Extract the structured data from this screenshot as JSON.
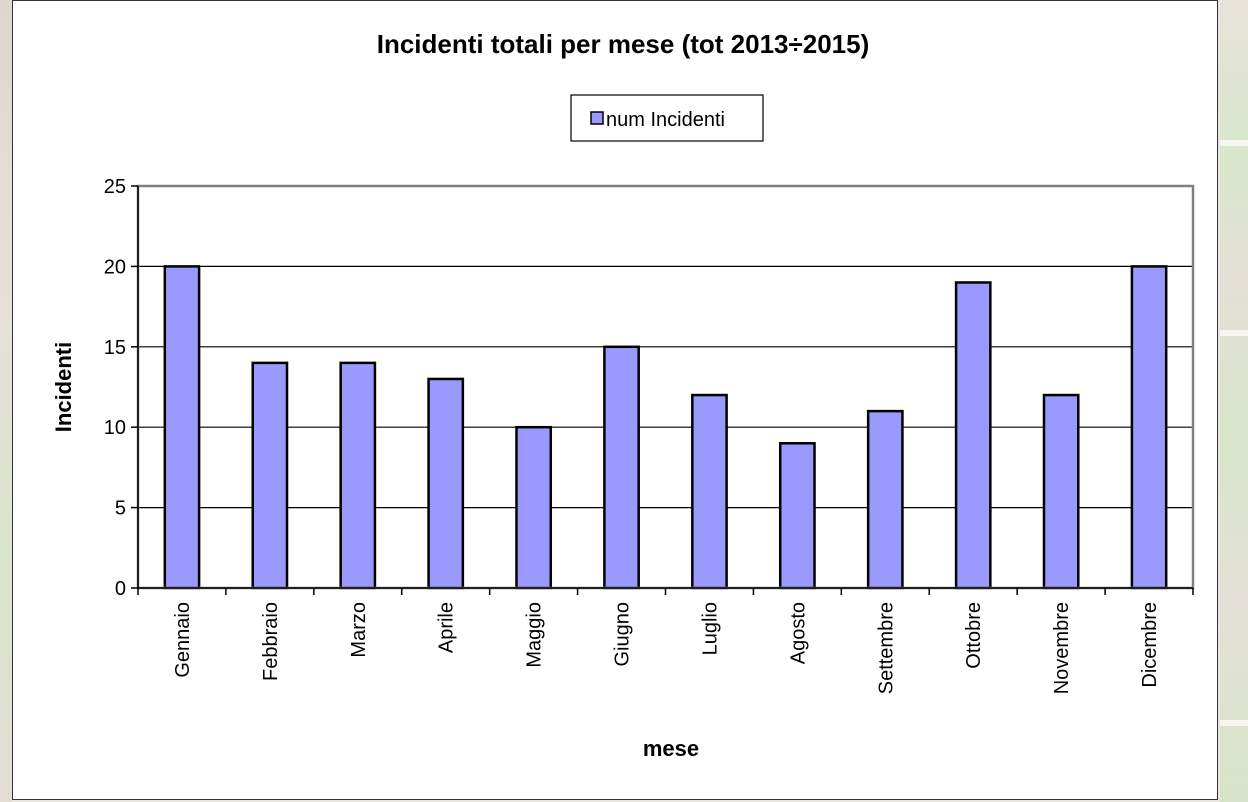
{
  "chart_data": {
    "type": "bar",
    "title": "Incidenti totali per mese (tot 2013÷2015)",
    "xlabel": "mese",
    "ylabel": "Incidenti",
    "ylim": [
      0,
      25
    ],
    "yticks": [
      0,
      5,
      10,
      15,
      20,
      25
    ],
    "categories": [
      "Gennaio",
      "Febbraio",
      "Marzo",
      "Aprile",
      "Maggio",
      "Giugno",
      "Luglio",
      "Agosto",
      "Settembre",
      "Ottobre",
      "Novembre",
      "Dicembre"
    ],
    "series": [
      {
        "name": "num Incidenti",
        "values": [
          20,
          14,
          14,
          13,
          10,
          15,
          12,
          9,
          11,
          19,
          12,
          20
        ]
      }
    ],
    "legend": "top-center",
    "grid": true,
    "colors": {
      "bar": "#9999ff",
      "bar_stroke": "#000000",
      "grid": "#000000",
      "axis": "#808080"
    }
  }
}
